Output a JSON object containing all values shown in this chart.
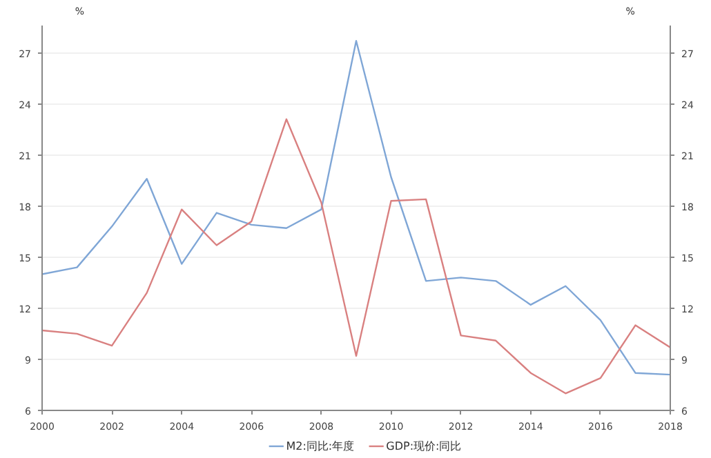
{
  "chart_data": {
    "type": "line",
    "ylabel": "%",
    "y2label": "%",
    "x": [
      2000,
      2001,
      2002,
      2003,
      2004,
      2005,
      2006,
      2007,
      2008,
      2009,
      2010,
      2011,
      2012,
      2013,
      2014,
      2015,
      2016,
      2017,
      2018
    ],
    "series": [
      {
        "name": "M2:同比:年度",
        "color": "#7fa6d6",
        "values": [
          14.0,
          14.4,
          16.8,
          19.6,
          14.6,
          17.6,
          16.9,
          16.7,
          17.8,
          27.7,
          19.7,
          13.6,
          13.8,
          13.6,
          12.2,
          13.3,
          11.3,
          8.2,
          8.1
        ]
      },
      {
        "name": "GDP:现价:同比",
        "color": "#d98080",
        "values": [
          10.7,
          10.5,
          9.8,
          12.9,
          17.8,
          15.7,
          17.1,
          23.1,
          18.2,
          9.2,
          18.3,
          18.4,
          10.4,
          10.1,
          8.2,
          7.0,
          7.9,
          11.0,
          9.7
        ]
      }
    ],
    "xlim": [
      2000,
      2018
    ],
    "xticks": [
      2000,
      2002,
      2004,
      2006,
      2008,
      2010,
      2012,
      2014,
      2016,
      2018
    ],
    "ylim": [
      6,
      28.6
    ],
    "yticks": [
      6,
      9,
      12,
      15,
      18,
      21,
      24,
      27
    ],
    "y2lim": [
      6,
      28.6
    ],
    "y2ticks": [
      6,
      9,
      12,
      15,
      18,
      21,
      24,
      27
    ],
    "grid": "y",
    "legend": "bottom",
    "marker": "none",
    "line_style": "solid"
  }
}
